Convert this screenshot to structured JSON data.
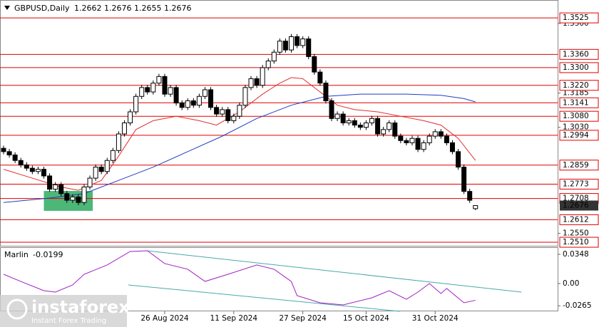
{
  "chart_data": [
    {
      "type": "candlestick",
      "symbol": "GBPUSD,Daily",
      "open": [
        1.2935,
        1.292,
        1.2905,
        1.288,
        1.286,
        1.2845,
        1.283,
        1.284,
        1.281,
        1.275,
        1.277,
        1.273,
        1.27,
        1.2715,
        1.269,
        1.276,
        1.28,
        1.285,
        1.283,
        1.288,
        1.2925,
        1.3,
        1.305,
        1.31,
        1.317,
        1.321,
        1.319,
        1.323,
        1.326,
        1.318,
        1.321,
        1.314,
        1.312,
        1.315,
        1.313,
        1.317,
        1.32,
        1.312,
        1.309,
        1.311,
        1.306,
        1.308,
        1.313,
        1.321,
        1.325,
        1.322,
        1.33,
        1.333,
        1.337,
        1.342,
        1.338,
        1.344,
        1.34,
        1.343,
        1.335,
        1.328,
        1.323,
        1.315,
        1.307,
        1.309,
        1.305,
        1.306,
        1.304,
        1.303,
        1.305,
        1.307,
        1.3,
        1.302,
        1.305,
        1.299,
        1.297,
        1.296,
        1.298,
        1.293,
        1.296,
        1.299,
        1.301,
        1.299,
        1.296,
        1.292,
        1.285,
        1.274,
        1.2662
      ],
      "high": [
        1.2947,
        1.2932,
        1.2917,
        1.2892,
        1.2872,
        1.2857,
        1.2852,
        1.2852,
        1.2822,
        1.2782,
        1.2782,
        1.2742,
        1.2727,
        1.2727,
        1.2772,
        1.2812,
        1.2862,
        1.2862,
        1.2892,
        1.2937,
        1.3012,
        1.3062,
        1.3112,
        1.3182,
        1.3222,
        1.3222,
        1.3242,
        1.3272,
        1.3272,
        1.3222,
        1.3222,
        1.3152,
        1.3162,
        1.3162,
        1.3182,
        1.3212,
        1.3212,
        1.3132,
        1.3122,
        1.3122,
        1.3092,
        1.3142,
        1.3222,
        1.3262,
        1.3262,
        1.3312,
        1.3342,
        1.3382,
        1.3432,
        1.3432,
        1.3452,
        1.3452,
        1.3442,
        1.3442,
        1.3362,
        1.3292,
        1.3242,
        1.3162,
        1.3102,
        1.3102,
        1.3072,
        1.3072,
        1.3052,
        1.3062,
        1.3082,
        1.3082,
        1.3032,
        1.3062,
        1.3062,
        1.3002,
        1.2982,
        1.2992,
        1.2992,
        1.2972,
        1.3002,
        1.3022,
        1.3022,
        1.3002,
        1.2972,
        1.2932,
        1.2862,
        1.2752,
        1.2676
      ],
      "low": [
        1.2908,
        1.2893,
        1.2868,
        1.2848,
        1.2833,
        1.2818,
        1.2818,
        1.2798,
        1.2738,
        1.2738,
        1.2718,
        1.2688,
        1.2688,
        1.2678,
        1.2678,
        1.2748,
        1.2788,
        1.2818,
        1.2818,
        1.2868,
        1.2913,
        1.2988,
        1.3038,
        1.3088,
        1.3158,
        1.3178,
        1.3178,
        1.3218,
        1.3168,
        1.3168,
        1.3128,
        1.3108,
        1.3108,
        1.3118,
        1.3118,
        1.3158,
        1.3108,
        1.3078,
        1.3078,
        1.3048,
        1.3048,
        1.3068,
        1.3118,
        1.3198,
        1.3208,
        1.3208,
        1.3288,
        1.3318,
        1.3358,
        1.3368,
        1.3368,
        1.3388,
        1.3388,
        1.3338,
        1.3268,
        1.3218,
        1.3138,
        1.3058,
        1.3058,
        1.3038,
        1.3038,
        1.3028,
        1.3018,
        1.3018,
        1.3038,
        1.2988,
        1.2988,
        1.3008,
        1.2978,
        1.2958,
        1.2948,
        1.2948,
        1.2918,
        1.2918,
        1.2948,
        1.2978,
        1.2978,
        1.2948,
        1.2908,
        1.2838,
        1.2728,
        1.2688,
        1.2655
      ],
      "close": [
        1.292,
        1.2905,
        1.288,
        1.286,
        1.2845,
        1.283,
        1.284,
        1.281,
        1.275,
        1.277,
        1.273,
        1.27,
        1.2715,
        1.269,
        1.276,
        1.28,
        1.285,
        1.283,
        1.288,
        1.2925,
        1.3,
        1.305,
        1.31,
        1.317,
        1.321,
        1.319,
        1.323,
        1.326,
        1.318,
        1.321,
        1.314,
        1.312,
        1.315,
        1.313,
        1.317,
        1.32,
        1.312,
        1.309,
        1.311,
        1.306,
        1.308,
        1.313,
        1.321,
        1.325,
        1.322,
        1.33,
        1.333,
        1.337,
        1.342,
        1.338,
        1.344,
        1.34,
        1.343,
        1.335,
        1.328,
        1.323,
        1.315,
        1.307,
        1.309,
        1.305,
        1.306,
        1.304,
        1.303,
        1.305,
        1.307,
        1.3,
        1.302,
        1.305,
        1.299,
        1.297,
        1.296,
        1.298,
        1.293,
        1.296,
        1.299,
        1.301,
        1.299,
        1.296,
        1.292,
        1.285,
        1.274,
        1.27,
        1.2676
      ],
      "up_color": "#ffffff",
      "down_color": "#000000",
      "xlim": [
        -0.62,
        96.28
      ],
      "ylim": [
        1.2494,
        1.3606
      ],
      "xticks": [
        {
          "value": 28,
          "label": "26 Aug 2024"
        },
        {
          "value": 40,
          "label": "11 Sep 2024"
        },
        {
          "value": 52,
          "label": "27 Sep 2024"
        },
        {
          "value": 63,
          "label": "15 Oct 2024"
        },
        {
          "value": 75,
          "label": "31 Oct 2024"
        }
      ],
      "yticks": [
        {
          "value": 1.35,
          "label": "1.3500"
        },
        1.3185,
        {
          "value": 1.303,
          "label": "1.3030"
        },
        {
          "value": 1.255,
          "label": "1.2550"
        }
      ],
      "levels": [
        1.3525,
        {
          "value": 1.336,
          "label": "1.3360"
        },
        {
          "value": 1.33,
          "label": "1.3300"
        },
        {
          "value": 1.322,
          "label": "1.3220"
        },
        1.3141,
        {
          "value": 1.308,
          "label": "1.3080"
        },
        1.2994,
        1.2859,
        1.2773,
        1.2708,
        1.2612,
        {
          "value": 1.251,
          "label": "1.2510"
        }
      ],
      "level_color": "#e00000",
      "ma": [
        {
          "color": "#e03030",
          "x": [
            0,
            5,
            10,
            13,
            17,
            20,
            23,
            26,
            30,
            34,
            37,
            41,
            45,
            48,
            50,
            52,
            55,
            58,
            61,
            65,
            69,
            73,
            76,
            79,
            82
          ],
          "values": [
            1.284,
            1.28,
            1.276,
            1.2745,
            1.279,
            1.29,
            1.302,
            1.306,
            1.308,
            1.306,
            1.304,
            1.31,
            1.318,
            1.323,
            1.3255,
            1.325,
            1.319,
            1.313,
            1.311,
            1.31,
            1.308,
            1.306,
            1.304,
            1.298,
            1.288
          ]
        },
        {
          "color": "#1f3fbf",
          "x": [
            0,
            8,
            14,
            20,
            26,
            32,
            38,
            44,
            50,
            56,
            62,
            70,
            76,
            80,
            82
          ],
          "values": [
            1.269,
            1.271,
            1.273,
            1.279,
            1.285,
            1.292,
            1.299,
            1.307,
            1.313,
            1.317,
            1.318,
            1.318,
            1.3175,
            1.316,
            1.3145
          ]
        }
      ],
      "zone": {
        "color": "#2eaa60",
        "x": [
          7,
          15.5
        ],
        "y": [
          1.2652,
          1.2742
        ]
      }
    },
    {
      "type": "line",
      "name": "Marlin",
      "color": "#a020c0",
      "x": [
        0,
        3,
        7,
        9,
        12,
        14,
        18,
        22,
        25,
        28,
        32,
        35,
        39,
        44,
        47,
        50,
        51,
        55,
        59,
        64,
        67,
        70,
        72,
        74,
        76,
        77,
        80,
        82
      ],
      "values": [
        0.011,
        0.0025,
        -0.0085,
        -0.0102,
        -0.0017,
        0.011,
        0.0221,
        0.0382,
        0.039,
        0.0238,
        0.017,
        0.0025,
        0.011,
        0.0221,
        0.017,
        0.0025,
        -0.0144,
        -0.0229,
        -0.0255,
        -0.017,
        -0.0085,
        -0.0187,
        -0.0102,
        0.0,
        -0.0119,
        -0.0059,
        -0.0229,
        -0.0199
      ],
      "xlim": [
        -0.62,
        96.28
      ],
      "ylim": [
        -0.0331,
        0.0424
      ],
      "yticks": [
        0.0348,
        {
          "value": 0,
          "label": "0.00"
        },
        -0.0265
      ],
      "trendlines": [
        {
          "color": "#4aa8a8",
          "x": [
            25,
            90
          ],
          "values": [
            0.039,
            -0.0102
          ]
        },
        {
          "color": "#4aa8a8",
          "x": [
            21.7,
            68.8
          ],
          "values": [
            -0.0017,
            -0.0331
          ]
        }
      ]
    }
  ],
  "watermark": {
    "brand": "instaforex",
    "tagline": "Instant Forex Trading"
  }
}
